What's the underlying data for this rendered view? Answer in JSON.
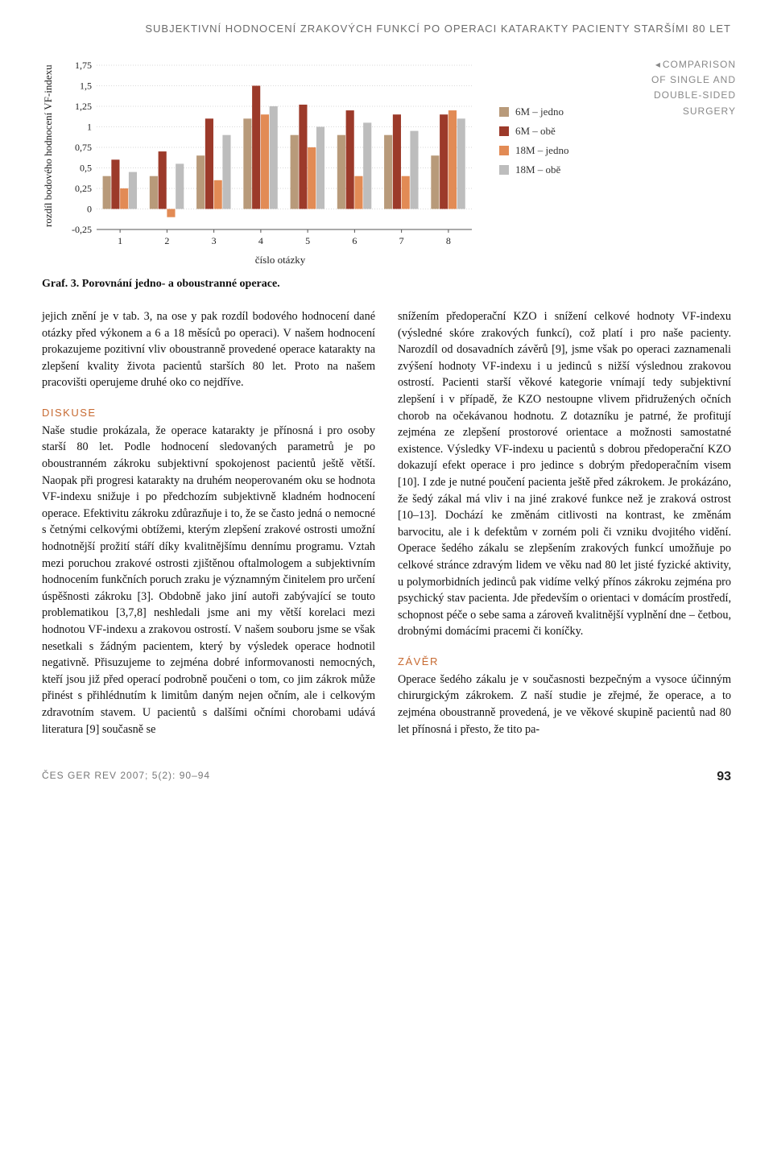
{
  "running_head": "SUBJEKTIVNÍ HODNOCENÍ ZRAKOVÝCH FUNKCÍ PO OPERACI KATARAKTY PACIENTY STARŠÍMI 80 LET",
  "side_caption": {
    "arrow": "◂",
    "line1": "COMPARISON",
    "line2": "OF SINGLE AND",
    "line3": "DOUBLE-SIDED",
    "line4": "SURGERY"
  },
  "chart": {
    "type": "bar-grouped",
    "y_label": "rozdíl bodového hodnocení VF-indexu",
    "x_label": "číslo otázky",
    "x_categories": [
      "1",
      "2",
      "3",
      "4",
      "5",
      "6",
      "7",
      "8"
    ],
    "y_ticks": [
      "-0,25",
      "0",
      "0,25",
      "0,5",
      "0,75",
      "1",
      "1,25",
      "1,5",
      "1,75"
    ],
    "ylim": [
      -0.25,
      1.75
    ],
    "ytick_step": 0.25,
    "grid_color": "#d9d9d9",
    "background_color": "#ffffff",
    "bar_group_width": 0.74,
    "series": [
      {
        "label": "6M – jedno",
        "color": "#b89a7a",
        "values": [
          0.4,
          0.4,
          0.65,
          1.1,
          0.9,
          0.9,
          0.9,
          0.65
        ]
      },
      {
        "label": "6M – obě",
        "color": "#9c3a2a",
        "values": [
          0.6,
          0.7,
          1.1,
          1.5,
          1.27,
          1.2,
          1.15,
          1.15
        ]
      },
      {
        "label": "18M – jedno",
        "color": "#e28b55",
        "values": [
          0.25,
          -0.1,
          0.35,
          1.15,
          0.75,
          0.4,
          0.4,
          1.2
        ]
      },
      {
        "label": "18M – obě",
        "color": "#bdbdbd",
        "values": [
          0.45,
          0.55,
          0.9,
          1.25,
          1.0,
          1.05,
          0.95,
          1.1
        ]
      }
    ],
    "font_size_axis": 12
  },
  "fig_caption": "Graf. 3. Porovnání jedno- a oboustranné operace.",
  "body": {
    "para1": "jejich znění je v tab. 3, na ose y pak rozdíl bodového hodnocení dané otázky před výkonem a 6 a 18 měsíců po operaci). V našem hodnocení prokazujeme pozitivní vliv oboustranně provedené operace katarakty na zlepšení kvality života pacientů starších 80 let. Proto na našem pracovišti operujeme druhé oko co nejdříve.",
    "diskuse_head": "DISKUSE",
    "para2": "Naše studie prokázala, že operace katarakty je přínosná i pro osoby starší 80 let. Podle hodnocení sledovaných parametrů je po oboustranném zákroku subjektivní spokojenost pacientů ještě větší. Naopak při progresi katarakty na druhém neoperovaném oku se hodnota VF-indexu snižuje i po předchozím subjektivně kladném hodnocení operace. Efektivitu zákroku zdůrazňuje i to, že se často jedná o nemocné s četnými celkovými obtížemi, kterým zlepšení zrakové ostrosti umožní hodnotnější prožití stáří díky kvalitnějšímu dennímu programu. Vztah mezi poruchou zrakové ostrosti zjištěnou oftalmologem a subjektivním hodnocením funkčních poruch zraku je významným činitelem pro určení úspěšnosti zákroku [3]. Obdobně jako jiní autoři zabývající se touto problematikou [3,7,8] neshledali jsme ani my větší korelaci mezi hodnotou VF-indexu a zrakovou ostrostí. V našem souboru jsme se však nesetkali s žádným pacientem, který by výsledek operace hodnotil negativně. Přisuzujeme to zejména dobré informovanosti nemocných, kteří jsou již před operací podrobně poučeni o tom, co jim zákrok může přinést s přihlédnutím k limitům daným nejen očním, ale i celkovým zdravotním stavem. U pacientů s dalšími očními chorobami udává literatura [9] současně se",
    "para3": "snížením předoperační KZO i snížení celkové hodnoty VF-indexu (výsledné skóre zrakových funkcí), což platí i pro naše pacienty. Narozdíl od dosavadních závěrů [9], jsme však po operaci zaznamenali zvýšení hodnoty VF-indexu i u jedinců s nižší výslednou zrakovou ostrostí. Pacienti starší věkové kategorie vnímají tedy subjektivní zlepšení i v případě, že KZO nestoupne vlivem přidružených očních chorob na očekávanou hodnotu. Z dotazníku je patrné, že profitují zejména ze zlepšení prostorové orientace a možnosti samostatné existence. Výsledky VF-indexu u pacientů s dobrou předoperační KZO dokazují efekt operace i pro jedince s dobrým předoperačním visem [10]. I zde je nutné poučení pacienta ještě před zákrokem. Je prokázáno, že šedý zákal má vliv i na jiné zrakové funkce než je zraková ostrost [10–13]. Dochází ke změnám citlivosti na kontrast, ke změnám barvocitu, ale i k defektům v zorném poli či vzniku dvojitého vidění. Operace šedého zákalu se zlepšením zrakových funkcí umožňuje po celkové stránce zdravým lidem ve věku nad 80 let jisté fyzické aktivity, u polymorbidních jedinců pak vidíme velký přínos zákroku zejména pro psychický stav pacienta. Jde především o orientaci v domácím prostředí, schopnost péče o sebe sama a zároveň kvalitnější vyplnění dne – četbou, drobnými domácími pracemi či koníčky.",
    "zaver_head": "ZÁVĚR",
    "para4": "Operace šedého zákalu je v současnosti bezpečným a vysoce účinným chirurgickým zákrokem. Z naší studie je zřejmé, že operace, a to zejména oboustranně provedená, je ve věkové skupině pacientů nad 80 let přínosná i přesto, že tito pa-"
  },
  "footer": {
    "left": "ČES GER REV 2007; 5(2): 90–94",
    "page": "93"
  }
}
